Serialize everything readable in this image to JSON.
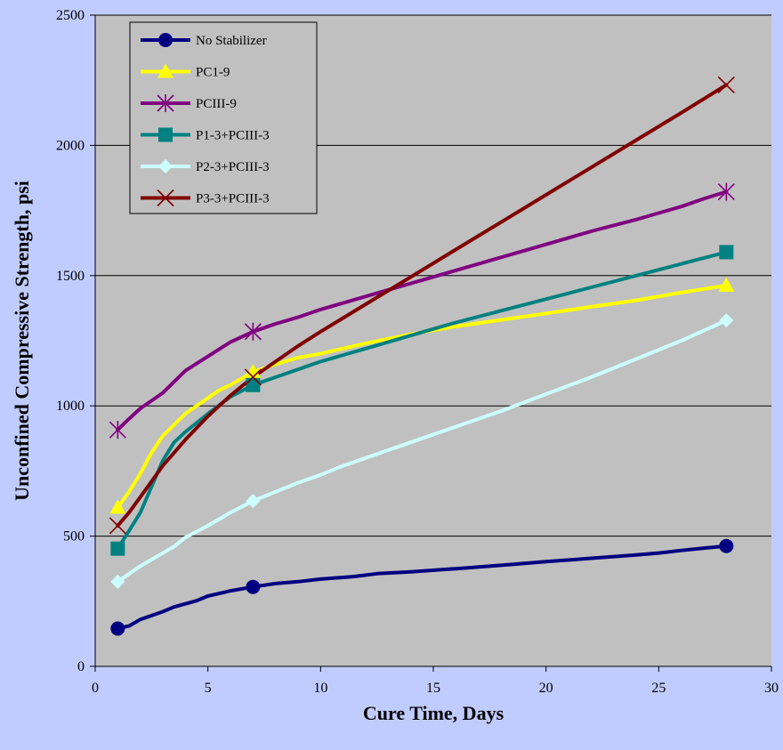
{
  "chart_data": {
    "type": "line",
    "title": "",
    "xlabel": "Cure Time, Days",
    "ylabel": "Unconfined Compressive Strength, psi",
    "xlim": [
      0,
      30
    ],
    "ylim": [
      0,
      2500
    ],
    "xticks": [
      0,
      5,
      10,
      15,
      20,
      25,
      30
    ],
    "yticks": [
      0,
      500,
      1000,
      1500,
      2000,
      2500
    ],
    "grid": "horizontal",
    "plot_background": "#c0c0c0",
    "legend_position": "top-left",
    "series": [
      {
        "name": "No Stabilizer",
        "color": "#000080",
        "marker": "circle",
        "marker_x": [
          1,
          7,
          28
        ],
        "points": [
          [
            1,
            145
          ],
          [
            1.5,
            155
          ],
          [
            2,
            180
          ],
          [
            3,
            210
          ],
          [
            3.5,
            228
          ],
          [
            4.5,
            252
          ],
          [
            5,
            270
          ],
          [
            6,
            290
          ],
          [
            7,
            305
          ],
          [
            8,
            318
          ],
          [
            9,
            325
          ],
          [
            10,
            335
          ],
          [
            11.5,
            345
          ],
          [
            12.5,
            356
          ],
          [
            14,
            363
          ],
          [
            16,
            375
          ],
          [
            18,
            388
          ],
          [
            20,
            402
          ],
          [
            22,
            415
          ],
          [
            24,
            428
          ],
          [
            25,
            435
          ],
          [
            26,
            445
          ],
          [
            27,
            454
          ],
          [
            28,
            462
          ]
        ]
      },
      {
        "name": "PC1-9",
        "color": "#ffff00",
        "marker": "triangle",
        "marker_x": [
          1,
          7,
          28
        ],
        "points": [
          [
            1,
            610
          ],
          [
            1.5,
            670
          ],
          [
            2,
            740
          ],
          [
            2.5,
            820
          ],
          [
            3,
            885
          ],
          [
            4,
            970
          ],
          [
            5,
            1030
          ],
          [
            5.5,
            1060
          ],
          [
            6,
            1080
          ],
          [
            7,
            1130
          ],
          [
            8,
            1160
          ],
          [
            9,
            1185
          ],
          [
            10,
            1200
          ],
          [
            12,
            1240
          ],
          [
            14,
            1275
          ],
          [
            16,
            1305
          ],
          [
            18,
            1330
          ],
          [
            20,
            1355
          ],
          [
            22,
            1380
          ],
          [
            24,
            1405
          ],
          [
            26,
            1435
          ],
          [
            28,
            1462
          ]
        ]
      },
      {
        "name": "PCIII-9",
        "color": "#800080",
        "marker": "star",
        "marker_x": [
          1,
          7,
          28
        ],
        "points": [
          [
            1,
            908
          ],
          [
            1.5,
            950
          ],
          [
            2,
            990
          ],
          [
            3,
            1050
          ],
          [
            4,
            1135
          ],
          [
            5,
            1190
          ],
          [
            6,
            1245
          ],
          [
            7,
            1285
          ],
          [
            8,
            1315
          ],
          [
            9,
            1340
          ],
          [
            10,
            1370
          ],
          [
            12,
            1420
          ],
          [
            14,
            1470
          ],
          [
            16,
            1520
          ],
          [
            18,
            1570
          ],
          [
            20,
            1620
          ],
          [
            22,
            1670
          ],
          [
            24,
            1715
          ],
          [
            25,
            1740
          ],
          [
            26,
            1765
          ],
          [
            27,
            1795
          ],
          [
            28,
            1822
          ]
        ]
      },
      {
        "name": "P1-3+PCIII-3",
        "color": "#008080",
        "marker": "square",
        "marker_x": [
          1,
          7,
          28
        ],
        "points": [
          [
            1,
            452
          ],
          [
            1.5,
            520
          ],
          [
            2,
            590
          ],
          [
            2.5,
            690
          ],
          [
            3,
            790
          ],
          [
            3.5,
            860
          ],
          [
            4,
            900
          ],
          [
            5,
            970
          ],
          [
            6,
            1035
          ],
          [
            7,
            1080
          ],
          [
            8,
            1110
          ],
          [
            9,
            1140
          ],
          [
            10,
            1170
          ],
          [
            12,
            1220
          ],
          [
            14,
            1270
          ],
          [
            16,
            1320
          ],
          [
            18,
            1365
          ],
          [
            20,
            1410
          ],
          [
            22,
            1455
          ],
          [
            24,
            1500
          ],
          [
            26,
            1545
          ],
          [
            28,
            1590
          ]
        ]
      },
      {
        "name": "P2-3+PCIII-3",
        "color": "#ccffff",
        "marker": "diamond",
        "marker_x": [
          1,
          7,
          28
        ],
        "points": [
          [
            1,
            325
          ],
          [
            2,
            385
          ],
          [
            3.5,
            460
          ],
          [
            4,
            495
          ],
          [
            5,
            540
          ],
          [
            6,
            590
          ],
          [
            7,
            635
          ],
          [
            8,
            670
          ],
          [
            9,
            705
          ],
          [
            10,
            735
          ],
          [
            11,
            770
          ],
          [
            12,
            800
          ],
          [
            14,
            860
          ],
          [
            16,
            920
          ],
          [
            18,
            980
          ],
          [
            20,
            1045
          ],
          [
            22,
            1110
          ],
          [
            24,
            1180
          ],
          [
            26,
            1250
          ],
          [
            28,
            1328
          ]
        ]
      },
      {
        "name": "P3-3+PCIII-3",
        "color": "#800000",
        "marker": "x",
        "marker_x": [
          1,
          7,
          28
        ],
        "points": [
          [
            1,
            540
          ],
          [
            1.5,
            590
          ],
          [
            2,
            650
          ],
          [
            3,
            770
          ],
          [
            4,
            870
          ],
          [
            5,
            960
          ],
          [
            6,
            1040
          ],
          [
            7,
            1110
          ],
          [
            8,
            1170
          ],
          [
            9,
            1230
          ],
          [
            10,
            1285
          ],
          [
            12,
            1390
          ],
          [
            14,
            1495
          ],
          [
            16,
            1600
          ],
          [
            18,
            1705
          ],
          [
            20,
            1810
          ],
          [
            22,
            1915
          ],
          [
            24,
            2020
          ],
          [
            26,
            2125
          ],
          [
            28,
            2232
          ]
        ]
      }
    ]
  }
}
